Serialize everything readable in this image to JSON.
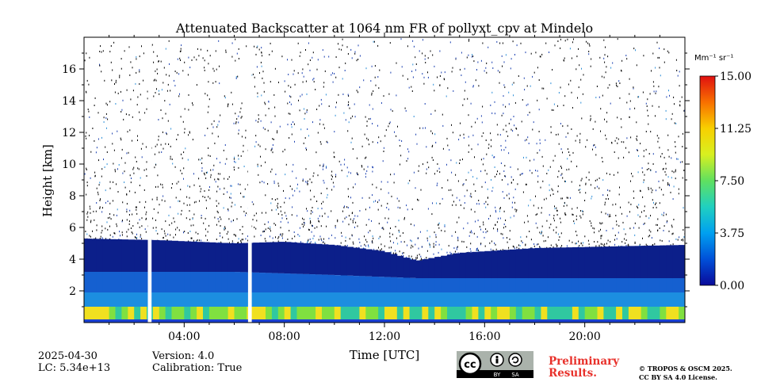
{
  "chart_data": {
    "type": "heatmap",
    "title": "Attenuated Backscatter at 1064 nm FR of pollyxt_cpv at Mindelo",
    "xlabel": "Time [UTC]",
    "ylabel": "Height [km]",
    "x_range_hours": [
      0,
      24
    ],
    "y_range_km": [
      0,
      18
    ],
    "x_ticks": [
      {
        "value": 4,
        "label": "04:00"
      },
      {
        "value": 8,
        "label": "08:00"
      },
      {
        "value": 12,
        "label": "12:00"
      },
      {
        "value": 16,
        "label": "16:00"
      },
      {
        "value": 20,
        "label": "20:00"
      }
    ],
    "y_ticks": [
      {
        "value": 2,
        "label": "2"
      },
      {
        "value": 4,
        "label": "4"
      },
      {
        "value": 6,
        "label": "6"
      },
      {
        "value": 8,
        "label": "8"
      },
      {
        "value": 10,
        "label": "10"
      },
      {
        "value": 12,
        "label": "12"
      },
      {
        "value": 14,
        "label": "14"
      },
      {
        "value": 16,
        "label": "16"
      }
    ],
    "colorbar": {
      "unit_label": "Mm⁻¹ sr⁻¹",
      "range": [
        0,
        15
      ],
      "ticks": [
        {
          "value": 0,
          "label": "0.00"
        },
        {
          "value": 3.75,
          "label": "3.75"
        },
        {
          "value": 7.5,
          "label": "7.50"
        },
        {
          "value": 11.25,
          "label": "11.25"
        },
        {
          "value": 15,
          "label": "15.00"
        }
      ],
      "colormap": [
        "#0a0a9a",
        "#0050d8",
        "#00a0f0",
        "#20d0c0",
        "#60e060",
        "#d8f020",
        "#f8d000",
        "#f87000",
        "#e01010"
      ]
    },
    "data_gaps_hours": [
      [
        2.55,
        2.7
      ],
      [
        6.55,
        6.7
      ]
    ],
    "structure": {
      "boundary_layer_top_km": [
        {
          "t": 0,
          "h": 5.3
        },
        {
          "t": 3,
          "h": 5.2
        },
        {
          "t": 6,
          "h": 5.0
        },
        {
          "t": 8,
          "h": 5.1
        },
        {
          "t": 10,
          "h": 4.9
        },
        {
          "t": 12,
          "h": 4.5
        },
        {
          "t": 13.3,
          "h": 3.9
        },
        {
          "t": 15,
          "h": 4.4
        },
        {
          "t": 18,
          "h": 4.7
        },
        {
          "t": 21,
          "h": 4.8
        },
        {
          "t": 24,
          "h": 4.9
        }
      ],
      "mid_layer_top_km": [
        {
          "t": 0,
          "h": 3.2
        },
        {
          "t": 6,
          "h": 3.2
        },
        {
          "t": 10,
          "h": 3.0
        },
        {
          "t": 13.3,
          "h": 2.8
        },
        {
          "t": 18,
          "h": 2.8
        },
        {
          "t": 24,
          "h": 2.8
        }
      ],
      "surface_layer_top_km": 1.0
    }
  },
  "meta": {
    "date": "2025-04-30",
    "lc": "LC: 5.34e+13",
    "version": "Version: 4.0",
    "calibration": "Calibration: True",
    "preliminary_line1": "Preliminary",
    "preliminary_line2": "Results.",
    "copyright_line1": "© TROPOS & OSCM 2025.",
    "copyright_line2": "CC BY SA 4.0 License.",
    "license_badge": {
      "cc": "cc",
      "by": "BY",
      "sa": "SA"
    }
  }
}
